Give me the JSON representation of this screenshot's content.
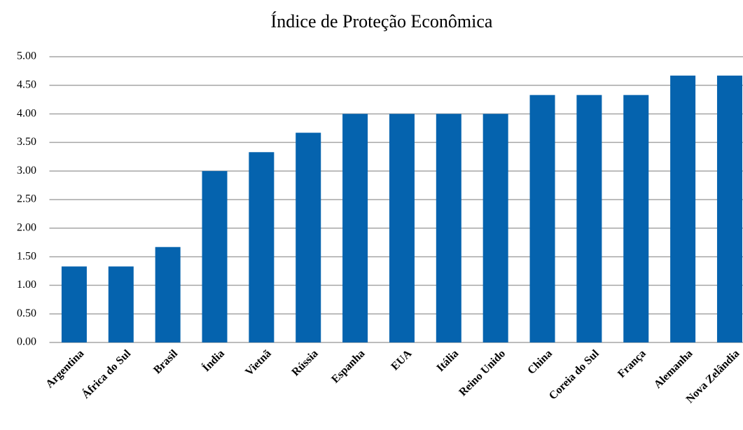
{
  "chart_data": {
    "type": "bar",
    "title": "Índice de Proteção Econômica",
    "categories": [
      "Argentina",
      "África do Sul",
      "Brasil",
      "Índia",
      "Vietnã",
      "Rússia",
      "Espanha",
      "EUA",
      "Itália",
      "Reino Unido",
      "China",
      "Coreia do Sul",
      "França",
      "Alemanha",
      "Nova Zelândia"
    ],
    "values": [
      1.33,
      1.33,
      1.67,
      3.0,
      3.33,
      3.67,
      4.0,
      4.0,
      4.0,
      4.0,
      4.33,
      4.33,
      4.33,
      4.67,
      4.67
    ],
    "color": "#0563ae",
    "ylim": [
      0,
      5
    ],
    "yticks": [
      {
        "value": 0,
        "label": "0.00"
      },
      {
        "value": 0.5,
        "label": "0.50"
      },
      {
        "value": 1,
        "label": "1.00"
      },
      {
        "value": 1.5,
        "label": "1.50"
      },
      {
        "value": 2,
        "label": "2.00"
      },
      {
        "value": 2.5,
        "label": "2.50"
      },
      {
        "value": 3,
        "label": "3.00"
      },
      {
        "value": 3.5,
        "label": "3.50"
      },
      {
        "value": 4,
        "label": "4.00"
      },
      {
        "value": 4.5,
        "label": "4.50"
      },
      {
        "value": 5,
        "label": "5.00"
      }
    ],
    "grid": true
  }
}
